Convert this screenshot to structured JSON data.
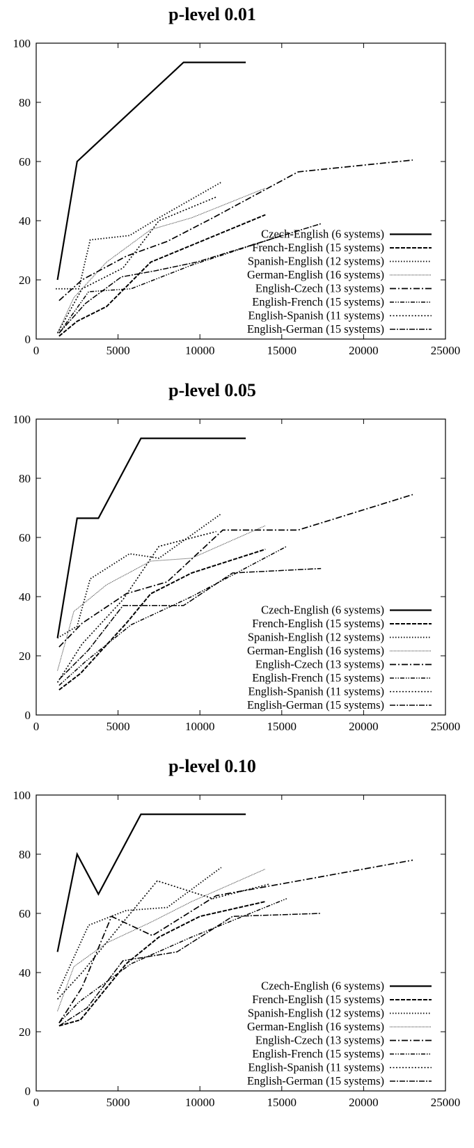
{
  "legend_labels": [
    "Czech-English (6 systems)",
    "French-English (15 systems)",
    "Spanish-English (12 systems)",
    "German-English (16 systems)",
    "English-Czech (13 systems)",
    "English-French (15 systems)",
    "English-Spanish (11 systems)",
    "English-German (15 systems)"
  ],
  "chart_data": [
    {
      "type": "line",
      "title": "p-level 0.01",
      "xlabel": "",
      "ylabel": "",
      "xlim": [
        0,
        25000
      ],
      "ylim": [
        0,
        100
      ],
      "xticks": [
        "0",
        "5000",
        "10000",
        "15000",
        "20000",
        "25000"
      ],
      "yticks": [
        "0",
        "20",
        "40",
        "60",
        "80",
        "100"
      ],
      "legend_position": "bottom-right",
      "series": [
        {
          "name": "Czech-English (6 systems)",
          "x": [
            1300,
            2500,
            9000,
            12800
          ],
          "y": [
            20,
            60,
            93.5,
            93.5
          ]
        },
        {
          "name": "French-English (15 systems)",
          "x": [
            1400,
            2500,
            4300,
            7000,
            14000
          ],
          "y": [
            1,
            6,
            11,
            26,
            42
          ]
        },
        {
          "name": "Spanish-English (12 systems)",
          "x": [
            1200,
            2600,
            3300,
            5700,
            7500,
            11300
          ],
          "y": [
            17,
            17,
            33.5,
            35,
            41,
            53
          ]
        },
        {
          "name": "German-English (16 systems)",
          "x": [
            1300,
            2300,
            4300,
            7000,
            9500,
            14000
          ],
          "y": [
            2,
            14,
            26,
            37,
            41,
            51
          ]
        },
        {
          "name": "English-Czech (13 systems)",
          "x": [
            1400,
            2800,
            5500,
            8000,
            10800,
            16000,
            23000
          ],
          "y": [
            13,
            20,
            28,
            33,
            41,
            56.5,
            60.5
          ]
        },
        {
          "name": "English-French (15 systems)",
          "x": [
            1400,
            3200,
            5800,
            9500,
            15000
          ],
          "y": [
            2,
            16,
            17,
            25,
            35
          ]
        },
        {
          "name": "English-Spanish (11 systems)",
          "x": [
            1300,
            2800,
            5300,
            7500,
            11000
          ],
          "y": [
            2,
            17,
            24,
            40,
            48
          ]
        },
        {
          "name": "English-German (15 systems)",
          "x": [
            1400,
            3000,
            5200,
            7200,
            9800,
            17400
          ],
          "y": [
            2,
            12,
            21,
            23,
            26,
            39
          ]
        }
      ]
    },
    {
      "type": "line",
      "title": "p-level 0.05",
      "xlabel": "",
      "ylabel": "",
      "xlim": [
        0,
        25000
      ],
      "ylim": [
        0,
        100
      ],
      "xticks": [
        "0",
        "5000",
        "10000",
        "15000",
        "20000",
        "25000"
      ],
      "yticks": [
        "0",
        "20",
        "40",
        "60",
        "80",
        "100"
      ],
      "legend_position": "bottom-right",
      "series": [
        {
          "name": "Czech-English (6 systems)",
          "x": [
            1300,
            2500,
            3800,
            6400,
            12800
          ],
          "y": [
            26,
            66.5,
            66.5,
            93.5,
            93.5
          ]
        },
        {
          "name": "French-English (15 systems)",
          "x": [
            1400,
            2700,
            5500,
            7000,
            9500,
            14000
          ],
          "y": [
            8.5,
            14,
            31,
            41,
            48,
            56
          ]
        },
        {
          "name": "Spanish-English (12 systems)",
          "x": [
            1300,
            2500,
            3300,
            5700,
            7500,
            11300
          ],
          "y": [
            26,
            30,
            46,
            54.5,
            53,
            68
          ]
        },
        {
          "name": "German-English (16 systems)",
          "x": [
            1300,
            2300,
            4300,
            7000,
            9500,
            14000
          ],
          "y": [
            15,
            35,
            44,
            52,
            53,
            64
          ]
        },
        {
          "name": "English-Czech (13 systems)",
          "x": [
            1400,
            2800,
            5500,
            8000,
            11400,
            16000,
            23000
          ],
          "y": [
            23,
            31,
            41,
            45,
            62.5,
            62.5,
            74.5
          ]
        },
        {
          "name": "English-French (15 systems)",
          "x": [
            1400,
            3000,
            5800,
            9500,
            15300
          ],
          "y": [
            10,
            18,
            30.5,
            40,
            57
          ]
        },
        {
          "name": "English-Spanish (11 systems)",
          "x": [
            1300,
            2800,
            5300,
            7500,
            11000
          ],
          "y": [
            11,
            24,
            39,
            57,
            62
          ]
        },
        {
          "name": "English-German (15 systems)",
          "x": [
            1400,
            3200,
            5300,
            7200,
            9000,
            12000,
            17400
          ],
          "y": [
            12,
            22,
            37,
            37,
            37,
            48,
            49.5
          ]
        }
      ]
    },
    {
      "type": "line",
      "title": "p-level 0.10",
      "xlabel": "",
      "ylabel": "",
      "xlim": [
        0,
        25000
      ],
      "ylim": [
        0,
        100
      ],
      "xticks": [
        "0",
        "5000",
        "10000",
        "15000",
        "20000",
        "25000"
      ],
      "yticks": [
        "0",
        "20",
        "40",
        "60",
        "80",
        "100"
      ],
      "legend_position": "bottom-right",
      "series": [
        {
          "name": "Czech-English (6 systems)",
          "x": [
            1300,
            2500,
            3800,
            6400,
            12800
          ],
          "y": [
            47,
            80,
            66.5,
            93.5,
            93.5
          ]
        },
        {
          "name": "French-English (15 systems)",
          "x": [
            1400,
            2700,
            5500,
            7500,
            10000,
            14000
          ],
          "y": [
            22,
            24,
            43,
            52,
            59,
            64
          ]
        },
        {
          "name": "Spanish-English (12 systems)",
          "x": [
            1300,
            3200,
            5500,
            8000,
            11300
          ],
          "y": [
            33,
            56,
            61,
            62,
            75.5
          ]
        },
        {
          "name": "German-English (16 systems)",
          "x": [
            1300,
            2300,
            4300,
            7000,
            9500,
            14000
          ],
          "y": [
            27,
            42,
            50,
            57,
            64,
            75
          ]
        },
        {
          "name": "English-Czech (13 systems)",
          "x": [
            1400,
            2800,
            4600,
            7100,
            11000,
            16000,
            23000
          ],
          "y": [
            23,
            35,
            59,
            52.5,
            66,
            71,
            78
          ]
        },
        {
          "name": "English-French (15 systems)",
          "x": [
            1400,
            2600,
            5800,
            9500,
            15300
          ],
          "y": [
            23,
            30,
            43,
            52,
            65
          ]
        },
        {
          "name": "English-Spanish (11 systems)",
          "x": [
            1300,
            2800,
            5300,
            7400,
            10800,
            14300
          ],
          "y": [
            31,
            40,
            57,
            71,
            65,
            70
          ]
        },
        {
          "name": "English-German (15 systems)",
          "x": [
            1400,
            3100,
            5300,
            8600,
            12000,
            17400
          ],
          "y": [
            22,
            28,
            44,
            47,
            59,
            60
          ]
        }
      ]
    }
  ]
}
